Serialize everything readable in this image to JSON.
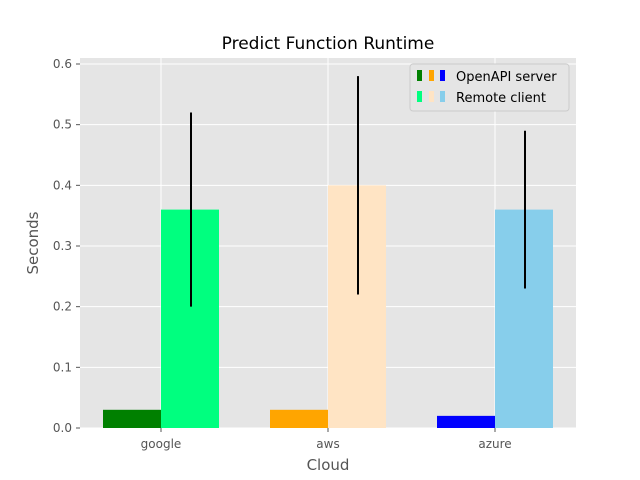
{
  "chart_data": {
    "type": "bar",
    "title": "Predict Function Runtime",
    "xlabel": "Cloud",
    "ylabel": "Seconds",
    "categories": [
      "google",
      "aws",
      "azure"
    ],
    "ylim": [
      0,
      0.6
    ],
    "yticks": [
      "0.0",
      "0.1",
      "0.2",
      "0.3",
      "0.4",
      "0.5",
      "0.6"
    ],
    "grid": true,
    "legend_position": "top-right",
    "series": [
      {
        "name": "OpenAPI server",
        "values": [
          0.03,
          0.03,
          0.02
        ],
        "colors": [
          "#008000",
          "#ffa500",
          "#0000ff"
        ]
      },
      {
        "name": "Remote client",
        "values": [
          0.36,
          0.4,
          0.36
        ],
        "colors": [
          "#00ff7f",
          "#ffe4c4",
          "#87ceeb"
        ],
        "error_low": [
          0.2,
          0.22,
          0.23
        ],
        "error_high": [
          0.52,
          0.58,
          0.49
        ]
      }
    ]
  }
}
